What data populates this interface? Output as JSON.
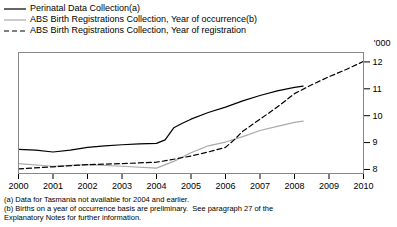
{
  "chart_data": {
    "type": "line",
    "ylabel": "'000",
    "xlim": [
      2000,
      2010
    ],
    "xticks": [
      2000,
      2001,
      2002,
      2003,
      2004,
      2005,
      2006,
      2007,
      2008,
      2009,
      2010
    ],
    "ylim": [
      7.85,
      12.35
    ],
    "yticks": [
      8,
      9,
      10,
      11,
      12
    ],
    "grid": false,
    "legend": "upper left",
    "series": [
      {
        "name": "Perinatal Data Collection(a)",
        "color": "#000000",
        "line_style": "solid",
        "x": [
          2000,
          2000.5,
          2001,
          2001.5,
          2002,
          2002.5,
          2003,
          2003.5,
          2004,
          2004.25,
          2004.5,
          2004.75,
          2005,
          2005.5,
          2006,
          2006.5,
          2007,
          2007.5,
          2008,
          2008.25
        ],
        "values": [
          8.75,
          8.72,
          8.65,
          8.72,
          8.82,
          8.88,
          8.92,
          8.95,
          8.97,
          9.1,
          9.55,
          9.72,
          9.87,
          10.12,
          10.32,
          10.55,
          10.75,
          10.92,
          11.05,
          11.1
        ]
      },
      {
        "name": "ABS Birth Registrations Collection, Year of occurrence(b)",
        "color": "#aaaaaa",
        "line_style": "solid",
        "x": [
          2000,
          2001,
          2002,
          2003,
          2004,
          2004.5,
          2005,
          2005.5,
          2006,
          2006.5,
          2007,
          2007.5,
          2008,
          2008.25
        ],
        "values": [
          8.22,
          8.12,
          8.18,
          8.12,
          8.05,
          8.3,
          8.62,
          8.88,
          9.02,
          9.22,
          9.45,
          9.6,
          9.75,
          9.8
        ]
      },
      {
        "name": "ABS Birth Registrations Collection, Year of registration",
        "color": "#000000",
        "line_style": "dashed",
        "x": [
          2000,
          2001,
          2002,
          2003,
          2004,
          2004.5,
          2005,
          2005.5,
          2006,
          2006.25,
          2006.5,
          2007,
          2007.5,
          2008,
          2008.5,
          2009,
          2009.5,
          2010
        ],
        "values": [
          8.02,
          8.1,
          8.18,
          8.22,
          8.27,
          8.38,
          8.5,
          8.65,
          8.82,
          9.1,
          9.42,
          9.87,
          10.32,
          10.82,
          11.15,
          11.45,
          11.72,
          12.02
        ]
      }
    ],
    "annotations": [
      "(a) Data for Tasmania not available for 2004 and earlier.",
      "(b) Births on a year of occurrence basis are preliminary.  See paragraph 27 of the",
      "Explanatory Notes for further information."
    ]
  }
}
